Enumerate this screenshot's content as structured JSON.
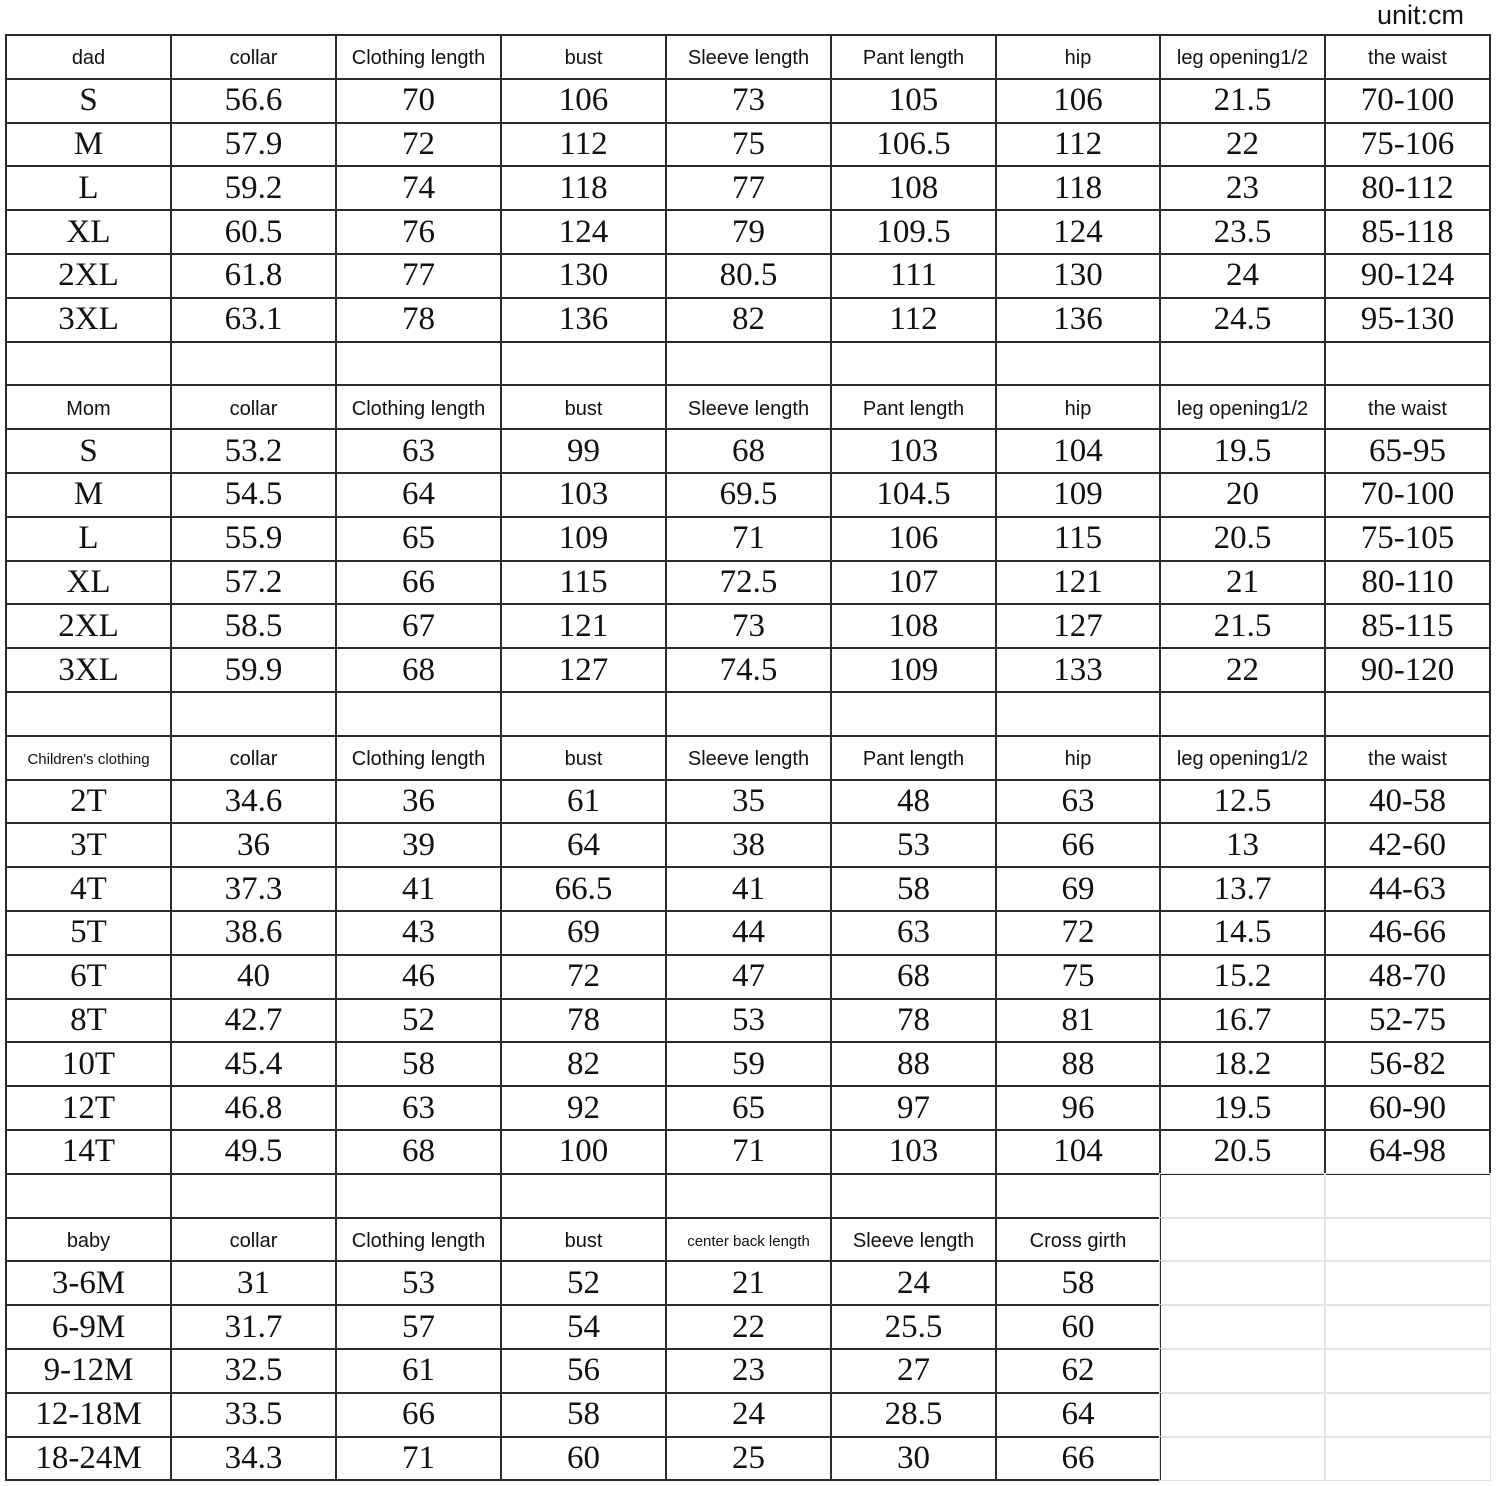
{
  "unit_label": "unit:cm",
  "sections": [
    {
      "header": [
        "dad",
        "collar",
        "Clothing length",
        "bust",
        "Sleeve length",
        "Pant length",
        "hip",
        "leg opening1/2",
        "the waist"
      ],
      "rows": [
        [
          "S",
          "56.6",
          "70",
          "106",
          "73",
          "105",
          "106",
          "21.5",
          "70-100"
        ],
        [
          "M",
          "57.9",
          "72",
          "112",
          "75",
          "106.5",
          "112",
          "22",
          "75-106"
        ],
        [
          "L",
          "59.2",
          "74",
          "118",
          "77",
          "108",
          "118",
          "23",
          "80-112"
        ],
        [
          "XL",
          "60.5",
          "76",
          "124",
          "79",
          "109.5",
          "124",
          "23.5",
          "85-118"
        ],
        [
          "2XL",
          "61.8",
          "77",
          "130",
          "80.5",
          "111",
          "130",
          "24",
          "90-124"
        ],
        [
          "3XL",
          "63.1",
          "78",
          "136",
          "82",
          "112",
          "136",
          "24.5",
          "95-130"
        ]
      ]
    },
    {
      "header": [
        "Mom",
        "collar",
        "Clothing length",
        "bust",
        "Sleeve length",
        "Pant length",
        "hip",
        "leg opening1/2",
        "the waist"
      ],
      "rows": [
        [
          "S",
          "53.2",
          "63",
          "99",
          "68",
          "103",
          "104",
          "19.5",
          "65-95"
        ],
        [
          "M",
          "54.5",
          "64",
          "103",
          "69.5",
          "104.5",
          "109",
          "20",
          "70-100"
        ],
        [
          "L",
          "55.9",
          "65",
          "109",
          "71",
          "106",
          "115",
          "20.5",
          "75-105"
        ],
        [
          "XL",
          "57.2",
          "66",
          "115",
          "72.5",
          "107",
          "121",
          "21",
          "80-110"
        ],
        [
          "2XL",
          "58.5",
          "67",
          "121",
          "73",
          "108",
          "127",
          "21.5",
          "85-115"
        ],
        [
          "3XL",
          "59.9",
          "68",
          "127",
          "74.5",
          "109",
          "133",
          "22",
          "90-120"
        ]
      ]
    },
    {
      "header": [
        "Children's clothing",
        "collar",
        "Clothing length",
        "bust",
        "Sleeve length",
        "Pant length",
        "hip",
        "leg opening1/2",
        "the waist"
      ],
      "rows": [
        [
          "2T",
          "34.6",
          "36",
          "61",
          "35",
          "48",
          "63",
          "12.5",
          "40-58"
        ],
        [
          "3T",
          "36",
          "39",
          "64",
          "38",
          "53",
          "66",
          "13",
          "42-60"
        ],
        [
          "4T",
          "37.3",
          "41",
          "66.5",
          "41",
          "58",
          "69",
          "13.7",
          "44-63"
        ],
        [
          "5T",
          "38.6",
          "43",
          "69",
          "44",
          "63",
          "72",
          "14.5",
          "46-66"
        ],
        [
          "6T",
          "40",
          "46",
          "72",
          "47",
          "68",
          "75",
          "15.2",
          "48-70"
        ],
        [
          "8T",
          "42.7",
          "52",
          "78",
          "53",
          "78",
          "81",
          "16.7",
          "52-75"
        ],
        [
          "10T",
          "45.4",
          "58",
          "82",
          "59",
          "88",
          "88",
          "18.2",
          "56-82"
        ],
        [
          "12T",
          "46.8",
          "63",
          "92",
          "65",
          "97",
          "96",
          "19.5",
          "60-90"
        ],
        [
          "14T",
          "49.5",
          "68",
          "100",
          "71",
          "103",
          "104",
          "20.5",
          "64-98"
        ]
      ]
    },
    {
      "header": [
        "baby",
        "collar",
        "Clothing length",
        "bust",
        "center back length",
        "Sleeve length",
        "Cross girth"
      ],
      "rows": [
        [
          "3-6M",
          "31",
          "53",
          "52",
          "21",
          "24",
          "58"
        ],
        [
          "6-9M",
          "31.7",
          "57",
          "54",
          "22",
          "25.5",
          "60"
        ],
        [
          "9-12M",
          "32.5",
          "61",
          "56",
          "23",
          "27",
          "62"
        ],
        [
          "12-18M",
          "33.5",
          "66",
          "58",
          "24",
          "28.5",
          "64"
        ],
        [
          "18-24M",
          "34.3",
          "71",
          "60",
          "25",
          "30",
          "66"
        ]
      ]
    }
  ]
}
